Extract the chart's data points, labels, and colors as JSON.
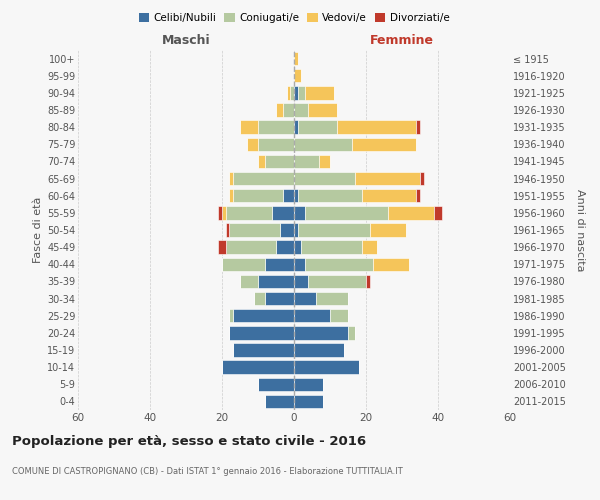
{
  "age_groups": [
    "0-4",
    "5-9",
    "10-14",
    "15-19",
    "20-24",
    "25-29",
    "30-34",
    "35-39",
    "40-44",
    "45-49",
    "50-54",
    "55-59",
    "60-64",
    "65-69",
    "70-74",
    "75-79",
    "80-84",
    "85-89",
    "90-94",
    "95-99",
    "100+"
  ],
  "birth_years": [
    "2011-2015",
    "2006-2010",
    "2001-2005",
    "1996-2000",
    "1991-1995",
    "1986-1990",
    "1981-1985",
    "1976-1980",
    "1971-1975",
    "1966-1970",
    "1961-1965",
    "1956-1960",
    "1951-1955",
    "1946-1950",
    "1941-1945",
    "1936-1940",
    "1931-1935",
    "1926-1930",
    "1921-1925",
    "1916-1920",
    "≤ 1915"
  ],
  "males": {
    "celibe": [
      8,
      10,
      20,
      17,
      18,
      17,
      8,
      10,
      8,
      5,
      4,
      6,
      3,
      0,
      0,
      0,
      0,
      0,
      0,
      0,
      0
    ],
    "coniugato": [
      0,
      0,
      0,
      0,
      0,
      1,
      3,
      5,
      12,
      14,
      14,
      13,
      14,
      17,
      8,
      10,
      10,
      3,
      1,
      0,
      0
    ],
    "vedovo": [
      0,
      0,
      0,
      0,
      0,
      0,
      0,
      0,
      0,
      0,
      0,
      1,
      1,
      1,
      2,
      3,
      5,
      2,
      1,
      0,
      0
    ],
    "divorziato": [
      0,
      0,
      0,
      0,
      0,
      0,
      0,
      0,
      0,
      2,
      1,
      1,
      0,
      0,
      0,
      0,
      0,
      0,
      0,
      0,
      0
    ]
  },
  "females": {
    "nubile": [
      8,
      8,
      18,
      14,
      15,
      10,
      6,
      4,
      3,
      2,
      1,
      3,
      1,
      0,
      0,
      0,
      1,
      0,
      1,
      0,
      0
    ],
    "coniugata": [
      0,
      0,
      0,
      0,
      2,
      5,
      9,
      16,
      19,
      17,
      20,
      23,
      18,
      17,
      7,
      16,
      11,
      4,
      2,
      0,
      0
    ],
    "vedova": [
      0,
      0,
      0,
      0,
      0,
      0,
      0,
      0,
      10,
      4,
      10,
      13,
      15,
      18,
      3,
      18,
      22,
      8,
      8,
      2,
      1
    ],
    "divorziata": [
      0,
      0,
      0,
      0,
      0,
      0,
      0,
      1,
      0,
      0,
      0,
      2,
      1,
      1,
      0,
      0,
      1,
      0,
      0,
      0,
      0
    ]
  },
  "colors": {
    "celibe_nubile": "#3d6fa0",
    "coniugato_a": "#b5c9a0",
    "vedovo_a": "#f5c55a",
    "divorziato_a": "#c0392b"
  },
  "xlim": 60,
  "title": "Popolazione per età, sesso e stato civile - 2016",
  "subtitle": "COMUNE DI CASTROPIGNANO (CB) - Dati ISTAT 1° gennaio 2016 - Elaborazione TUTTITALIA.IT",
  "ylabel_left": "Fasce di età",
  "ylabel_right": "Anni di nascita",
  "xlabel_left": "Maschi",
  "xlabel_right": "Femmine",
  "background_color": "#f7f7f7"
}
